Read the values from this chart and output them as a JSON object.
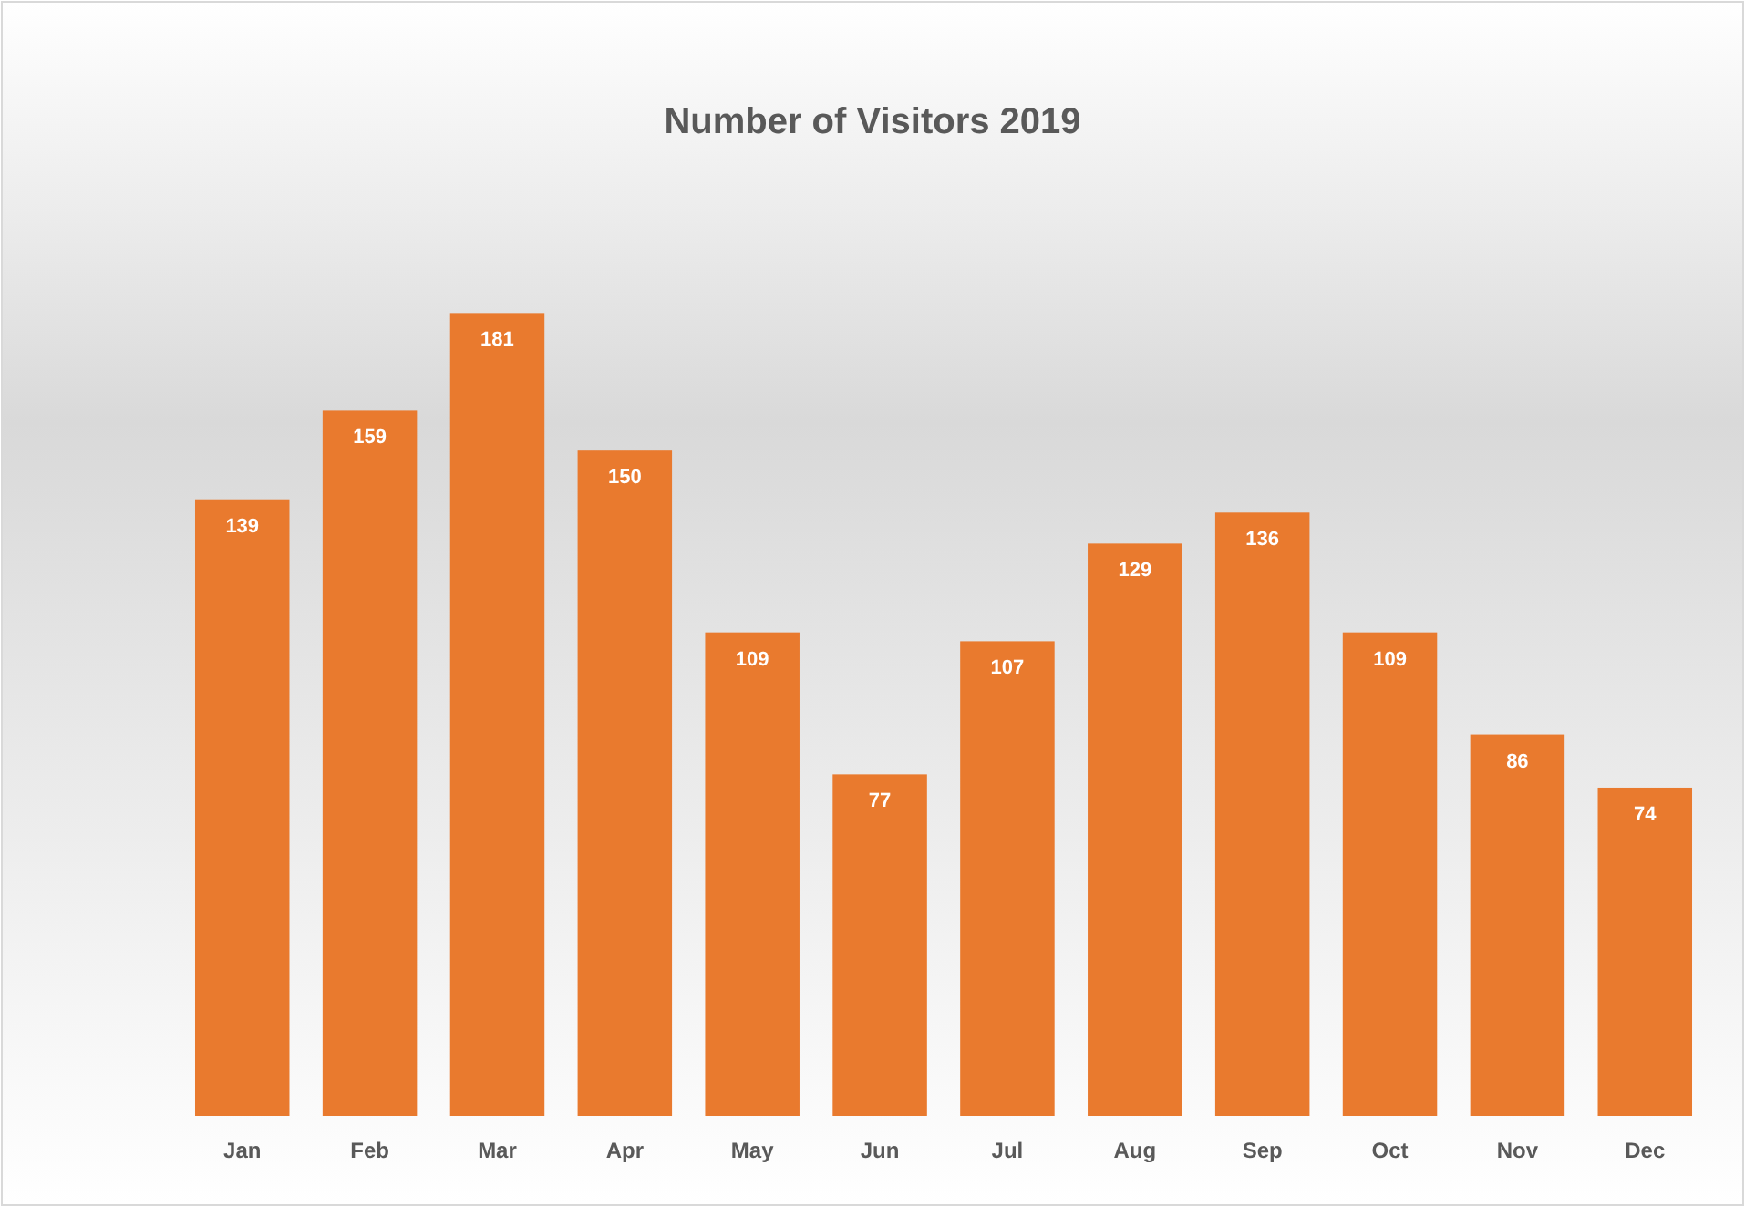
{
  "chart_data": {
    "type": "bar",
    "title": "Number of Visitors 2019",
    "categories": [
      "Jan",
      "Feb",
      "Mar",
      "Apr",
      "May",
      "Jun",
      "Jul",
      "Aug",
      "Sep",
      "Oct",
      "Nov",
      "Dec"
    ],
    "values": [
      139,
      159,
      181,
      150,
      109,
      77,
      107,
      129,
      136,
      109,
      86,
      74
    ],
    "color": "#e97a2e",
    "data_labels": true
  }
}
